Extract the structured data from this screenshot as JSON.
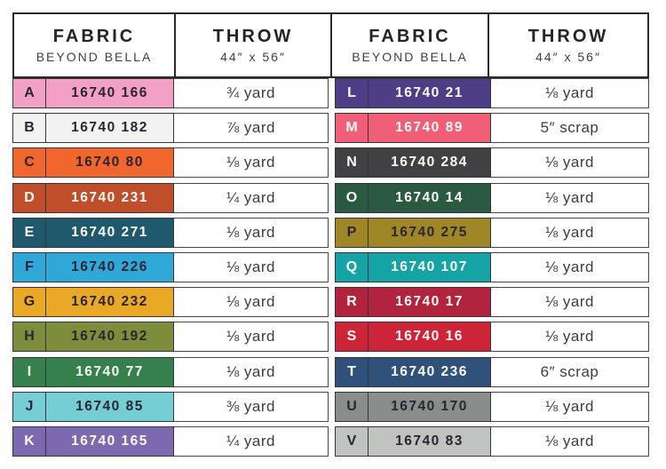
{
  "header": {
    "fabric_label": "FABRIC",
    "fabric_sub": "BEYOND BELLA",
    "throw_label": "THROW",
    "throw_sub": "44″ x 56″"
  },
  "colors": {
    "swatch_border": "#34343a",
    "header_border": "#2b2b2b",
    "dark_text": "#2b2433",
    "light_text": "#fdfbf7",
    "yardage_text": "#3d3d3d"
  },
  "rows": {
    "left": [
      {
        "letter": "A",
        "fabric": "16740 166",
        "throw": "¾ yard",
        "swatch": "#F2A0C3",
        "text": "dark"
      },
      {
        "letter": "B",
        "fabric": "16740 182",
        "throw": "⅞ yard",
        "swatch": "#F2F2F0",
        "text": "dark"
      },
      {
        "letter": "C",
        "fabric": "16740 80",
        "throw": "⅛ yard",
        "swatch": "#F1662C",
        "text": "dark"
      },
      {
        "letter": "D",
        "fabric": "16740 231",
        "throw": "¼ yard",
        "swatch": "#C04E2B",
        "text": "light"
      },
      {
        "letter": "E",
        "fabric": "16740 271",
        "throw": "⅛ yard",
        "swatch": "#1F596D",
        "text": "light"
      },
      {
        "letter": "F",
        "fabric": "16740 226",
        "throw": "⅛ yard",
        "swatch": "#2FA8D8",
        "text": "dark"
      },
      {
        "letter": "G",
        "fabric": "16740 232",
        "throw": "⅛ yard",
        "swatch": "#E9A826",
        "text": "dark"
      },
      {
        "letter": "H",
        "fabric": "16740 192",
        "throw": "⅛ yard",
        "swatch": "#7E8D3B",
        "text": "dark"
      },
      {
        "letter": "I",
        "fabric": "16740 77",
        "throw": "⅛ yard",
        "swatch": "#35814E",
        "text": "light"
      },
      {
        "letter": "J",
        "fabric": "16740 85",
        "throw": "⅜ yard",
        "swatch": "#75CED4",
        "text": "dark"
      },
      {
        "letter": "K",
        "fabric": "16740 165",
        "throw": "¼ yard",
        "swatch": "#7C69AF",
        "text": "light"
      }
    ],
    "right": [
      {
        "letter": "L",
        "fabric": "16740 21",
        "throw": "⅛ yard",
        "swatch": "#4E3E87",
        "text": "light"
      },
      {
        "letter": "M",
        "fabric": "16740 89",
        "throw": "5″ scrap",
        "swatch": "#F05E78",
        "text": "light"
      },
      {
        "letter": "N",
        "fabric": "16740 284",
        "throw": "⅛ yard",
        "swatch": "#414143",
        "text": "light"
      },
      {
        "letter": "O",
        "fabric": "16740 14",
        "throw": "⅛ yard",
        "swatch": "#2B5A42",
        "text": "light"
      },
      {
        "letter": "P",
        "fabric": "16740 275",
        "throw": "⅛ yard",
        "swatch": "#9F8728",
        "text": "dark"
      },
      {
        "letter": "Q",
        "fabric": "16740 107",
        "throw": "⅛ yard",
        "swatch": "#16A3A5",
        "text": "light"
      },
      {
        "letter": "R",
        "fabric": "16740 17",
        "throw": "⅛ yard",
        "swatch": "#B2233E",
        "text": "light"
      },
      {
        "letter": "S",
        "fabric": "16740 16",
        "throw": "⅛ yard",
        "swatch": "#CE2438",
        "text": "light"
      },
      {
        "letter": "T",
        "fabric": "16740 236",
        "throw": "6″ scrap",
        "swatch": "#30527A",
        "text": "light"
      },
      {
        "letter": "U",
        "fabric": "16740 170",
        "throw": "⅛ yard",
        "swatch": "#898E8B",
        "text": "dark"
      },
      {
        "letter": "V",
        "fabric": "16740 83",
        "throw": "⅛ yard",
        "swatch": "#C0C3BF",
        "text": "dark"
      }
    ]
  }
}
